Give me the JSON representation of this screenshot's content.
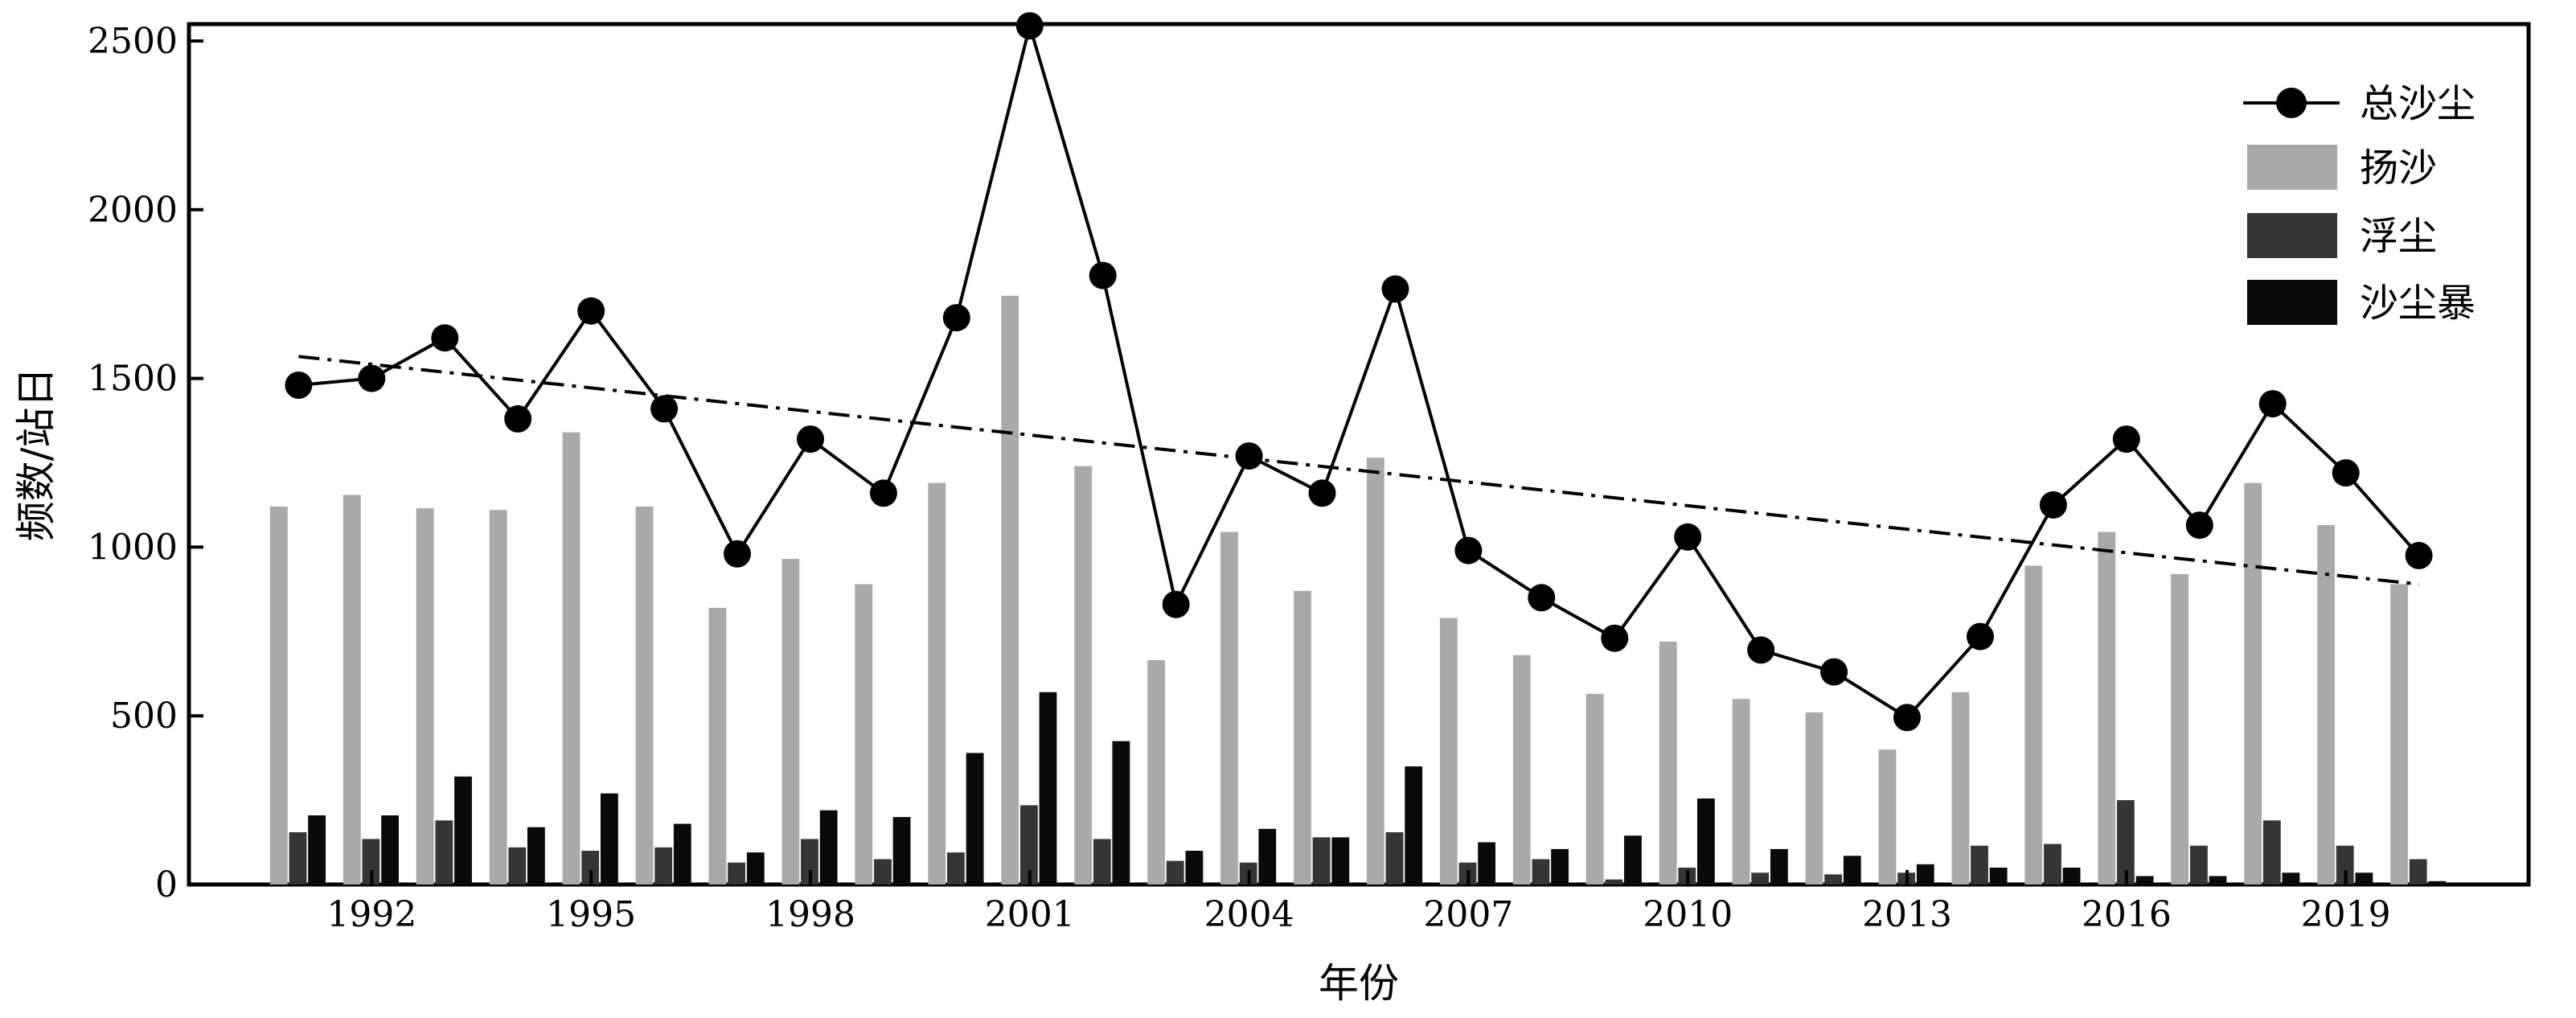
{
  "chart_data": {
    "type": "bar",
    "title": "",
    "xlabel": "年份",
    "ylabel": "频数/站日",
    "ylim": [
      0,
      2550
    ],
    "xlim": [
      1989.5,
      2021.5
    ],
    "yticks": [
      0,
      500,
      1000,
      1500,
      2000,
      2500
    ],
    "xticks": [
      1992,
      1995,
      1998,
      2001,
      2004,
      2007,
      2010,
      2013,
      2016,
      2019
    ],
    "grid": false,
    "legend_position": "top-right",
    "years": [
      1991,
      1992,
      1993,
      1994,
      1995,
      1996,
      1997,
      1998,
      1999,
      2000,
      2001,
      2002,
      2003,
      2004,
      2005,
      2006,
      2007,
      2008,
      2009,
      2010,
      2011,
      2012,
      2013,
      2014,
      2015,
      2016,
      2017,
      2018,
      2019,
      2020
    ],
    "series": [
      {
        "name": "总沙尘",
        "kind": "line",
        "color": "#000000",
        "values": [
          1480,
          1500,
          1620,
          1380,
          1700,
          1410,
          980,
          1320,
          1160,
          1680,
          2545,
          1805,
          830,
          1270,
          1160,
          1765,
          990,
          850,
          730,
          1030,
          695,
          630,
          495,
          735,
          1125,
          1320,
          1065,
          1425,
          1220,
          975
        ]
      },
      {
        "name": "扬沙",
        "kind": "bar",
        "color": "#a9a9a9",
        "values": [
          1120,
          1155,
          1115,
          1110,
          1340,
          1120,
          820,
          965,
          890,
          1190,
          1745,
          1240,
          665,
          1045,
          870,
          1265,
          790,
          680,
          565,
          720,
          550,
          510,
          400,
          570,
          945,
          1045,
          920,
          1190,
          1065,
          890
        ]
      },
      {
        "name": "浮尘",
        "kind": "bar",
        "color": "#353535",
        "values": [
          155,
          135,
          190,
          110,
          100,
          110,
          65,
          135,
          75,
          95,
          235,
          135,
          70,
          65,
          140,
          155,
          65,
          75,
          15,
          50,
          35,
          30,
          35,
          115,
          120,
          250,
          115,
          190,
          115,
          75
        ]
      },
      {
        "name": "沙尘暴",
        "kind": "bar",
        "color": "#0a0a0a",
        "values": [
          205,
          205,
          320,
          170,
          270,
          180,
          95,
          220,
          200,
          390,
          570,
          425,
          100,
          165,
          140,
          350,
          125,
          105,
          145,
          255,
          105,
          85,
          60,
          50,
          50,
          25,
          25,
          35,
          35,
          10
        ]
      }
    ],
    "trend_line": {
      "style": "dash-dot",
      "start": {
        "x": 1991,
        "y": 1565
      },
      "end": {
        "x": 2020,
        "y": 890
      }
    }
  }
}
